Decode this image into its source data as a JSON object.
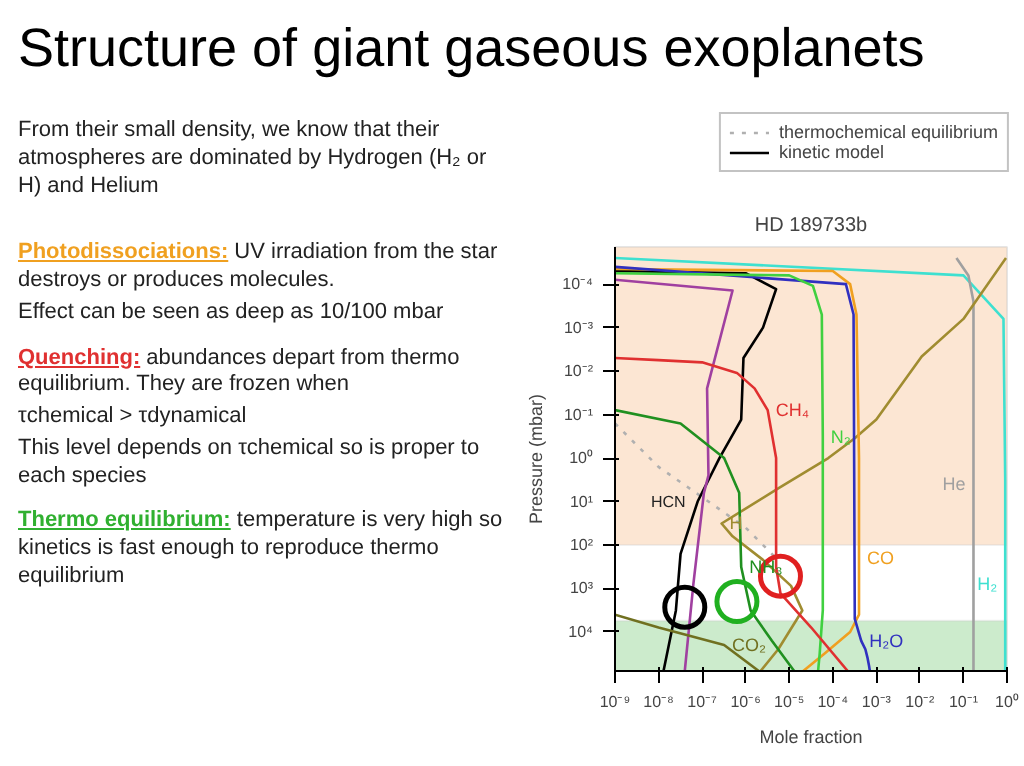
{
  "chart_data": {
    "type": "line",
    "title": "Structure of giant gaseous exoplanets",
    "subtitle": "HD 189733b",
    "xlabel": "Mole fraction",
    "ylabel": "Pressure (mbar)",
    "log": "xy",
    "xlim": [
      1e-09,
      1
    ],
    "ylim": [
      79000,
      1.4e-05
    ],
    "xticks": [
      {
        "value": 1e-09,
        "label": "10⁻⁹"
      },
      {
        "value": 1e-08,
        "label": "10⁻⁸"
      },
      {
        "value": 1e-07,
        "label": "10⁻⁷"
      },
      {
        "value": 1e-06,
        "label": "10⁻⁶"
      },
      {
        "value": 1e-05,
        "label": "10⁻⁵"
      },
      {
        "value": 0.0001,
        "label": "10⁻⁴"
      },
      {
        "value": 0.001,
        "label": "10⁻³"
      },
      {
        "value": 0.01,
        "label": "10⁻²"
      },
      {
        "value": 0.1,
        "label": "10⁻¹"
      },
      {
        "value": 1,
        "label": "10⁰"
      }
    ],
    "yticks": [
      {
        "value": 0.0001,
        "label": "10⁻⁴"
      },
      {
        "value": 0.001,
        "label": "10⁻³"
      },
      {
        "value": 0.01,
        "label": "10⁻²"
      },
      {
        "value": 0.1,
        "label": "10⁻¹"
      },
      {
        "value": 1,
        "label": "10⁰"
      },
      {
        "value": 10,
        "label": "10¹"
      },
      {
        "value": 100,
        "label": "10²"
      },
      {
        "value": 1000,
        "label": "10³"
      },
      {
        "value": 10000,
        "label": "10⁴"
      }
    ],
    "legend": "top right",
    "bands": [
      {
        "axis": "y",
        "from": 1.4e-05,
        "to": 100,
        "color": "#fbe0c8"
      },
      {
        "axis": "y",
        "from": 5500,
        "to": 79000,
        "color": "#bfe6bf"
      }
    ],
    "series": [
      {
        "name": "thermochemical equilibrium",
        "color": "#b0b0b0",
        "line_style": "dotted",
        "x": [
          1e-09,
          1e-08,
          1e-07,
          1e-06,
          5e-06
        ],
        "values": [
          0.16,
          1.6,
          7.9,
          40,
          200
        ]
      },
      {
        "name": "kinetic model",
        "line_style": "solid",
        "color": "#000000",
        "x": [
          1e-09,
          1e-06,
          5e-06,
          2.5e-06,
          8.9e-07,
          7.9e-07,
          2.5e-07,
          7.9e-08,
          3.2e-08,
          2.5e-08,
          1.3e-08
        ],
        "values": [
          5e-05,
          5.6e-05,
          0.00013,
          0.001,
          0.005,
          0.13,
          1,
          10,
          160,
          3200,
          79000
        ]
      },
      {
        "color": "#a040a0",
        "x": [
          1e-09,
          5e-07,
          1.3e-07,
          1.4e-07,
          1.1e-07,
          6.3e-08,
          4e-08
        ],
        "values": [
          7.9e-05,
          0.00014,
          0.025,
          2.5,
          6.3,
          790,
          79000
        ]
      },
      {
        "name": "H₂",
        "color": "#3ee0d0",
        "x": [
          1e-09,
          0.1,
          0.83,
          0.91,
          0.91,
          0.91,
          0.91,
          0.91,
          0.91
        ],
        "values": [
          2.5e-05,
          6.3e-05,
          0.00063,
          3.2,
          790,
          2500,
          7900,
          25000,
          79000
        ]
      },
      {
        "name": "He",
        "color": "#a0a0a0",
        "x": [
          0.069,
          0.13,
          0.17,
          0.17,
          0.17,
          0.17,
          0.17,
          0.17,
          0.17
        ],
        "values": [
          2.5e-05,
          6.3e-05,
          0.00025,
          0.01,
          4.0,
          100,
          1600,
          10000,
          79000
        ]
      },
      {
        "name": "H",
        "color": "#a08c30",
        "x": [
          0.95,
          0.1,
          0.011,
          0.001,
          0.00032,
          7.9e-05,
          5.6e-06,
          2.8e-07,
          5e-07,
          2.5e-06,
          1.1e-05,
          2e-05,
          5.6e-06,
          2.2e-06
        ],
        "values": [
          2.5e-05,
          0.00063,
          0.0046,
          0.13,
          0.35,
          1,
          5.0,
          32,
          63,
          220,
          870,
          3200,
          25000,
          79000
        ]
      },
      {
        "name": "CO",
        "color": "#f0a020",
        "x": [
          1e-09,
          0.0001,
          0.00025,
          0.00035,
          0.0004,
          0.0004,
          0.0004,
          0.00025,
          6.3e-05,
          2.1e-05
        ],
        "values": [
          4.5e-05,
          5e-05,
          0.0001,
          0.0005,
          1,
          200,
          4000,
          10000,
          32000,
          79000
        ]
      },
      {
        "name": "H₂O",
        "color": "#3030c0",
        "x": [
          1e-09,
          0.0002,
          0.0003,
          0.00032,
          0.00045,
          0.00056,
          0.00063,
          0.00068,
          0.00071
        ],
        "values": [
          4e-05,
          0.0001,
          0.0005,
          5000,
          16000,
          25000,
          40000,
          60000,
          79000
        ]
      },
      {
        "name": "N₂",
        "color": "#40d040",
        "x": [
          1e-09,
          1e-05,
          3.5e-05,
          5.6e-05,
          5.9e-05,
          5.9e-05,
          5.9e-05,
          5e-05,
          4.6e-05
        ],
        "values": [
          5.6e-05,
          6.3e-05,
          0.00011,
          0.0005,
          0.32,
          10,
          3200,
          32000,
          79000
        ]
      },
      {
        "name": "CH₄",
        "color": "#e03030",
        "x": [
          1e-09,
          1e-08,
          1e-07,
          6.3e-07,
          1.6e-06,
          3.2e-06,
          5e-06,
          5e-06,
          6.3e-06,
          3.2e-05,
          0.00022
        ],
        "values": [
          0.005,
          0.0056,
          0.0063,
          0.011,
          0.025,
          0.079,
          1,
          320,
          1300,
          7900,
          79000
        ]
      },
      {
        "name": "NH₃",
        "color": "#209020",
        "x": [
          1e-09,
          3.2e-08,
          3.2e-07,
          7.1e-07,
          7.9e-07,
          1.3e-06,
          4e-06,
          1.3e-05
        ],
        "values": [
          0.079,
          0.16,
          1,
          6.3,
          320,
          3200,
          16000,
          79000
        ]
      },
      {
        "name": "CO₂",
        "color": "#707020",
        "x": [
          1e-09,
          1e-08,
          3.2e-07,
          2e-06
        ],
        "values": [
          4000,
          7900,
          20000,
          79000
        ]
      },
      {
        "type": "scatter",
        "marker": "circle",
        "colors": [
          "#000000",
          "#20b020",
          "#e02020"
        ],
        "x": [
          4e-08,
          6.3e-07,
          6.3e-06
        ],
        "values": [
          2700,
          2000,
          520
        ]
      }
    ],
    "annotations": [
      "From their small density, we know that their atmospheres are dominated by Hydrogen (H₂ or H) and Helium",
      "Photodissociations: UV irradiation from the star destroys or produces molecules.",
      "Effect can be seen as deep as 10/100 mbar",
      "Quenching: abundances depart from thermo equilibrium. They are frozen when",
      "τchemical > τdynamical",
      "This level depends on τchemical so is proper to each species",
      "Thermo equilibrium: temperature is very high so kinetics is fast enough to reproduce thermo equilibrium",
      {
        "text": "HCN",
        "x": 7.9e-08,
        "y": 10
      }
    ]
  }
}
